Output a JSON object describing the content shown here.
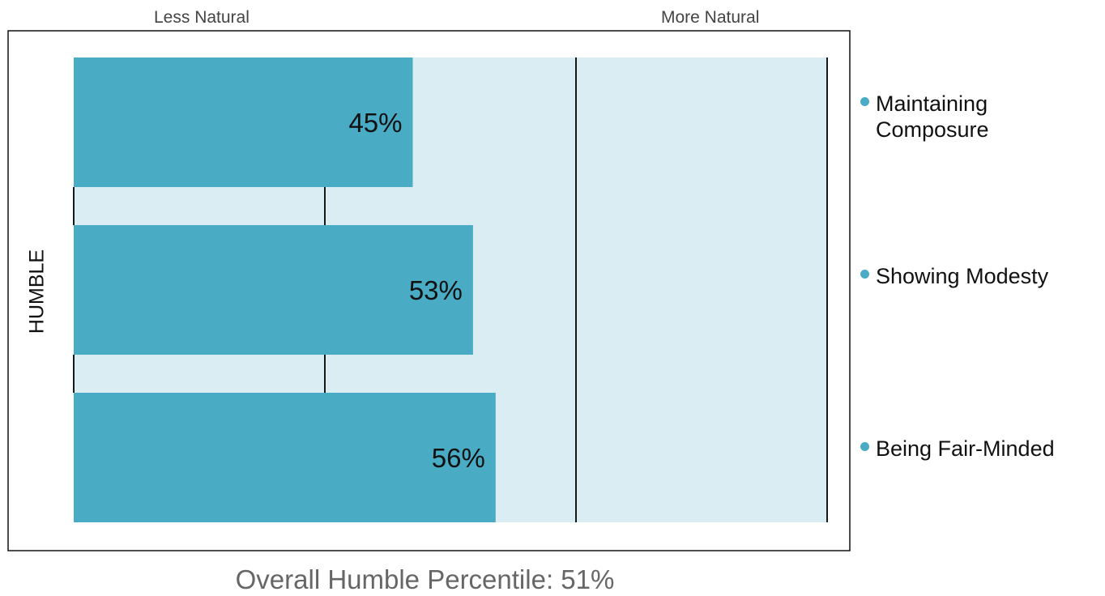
{
  "chart_data": {
    "type": "bar",
    "orientation": "horizontal",
    "axis_left_label": "Less Natural",
    "axis_right_label": "More Natural",
    "ylabel": "HUMBLE",
    "xlim": [
      0,
      100
    ],
    "categories": [
      "Maintaining Composure",
      "Showing Modesty",
      "Being Fair-Minded"
    ],
    "values": [
      45,
      53,
      56
    ],
    "value_labels": [
      "45%",
      "53%",
      "56%"
    ],
    "overall_label": "Overall Humble Percentile:",
    "overall_value": "51%",
    "colors": {
      "bar": "#4aabc5",
      "track": "#daedf3",
      "frame": "#000000",
      "legend_dot": "#4aabc5"
    },
    "legend_placement": "right"
  }
}
